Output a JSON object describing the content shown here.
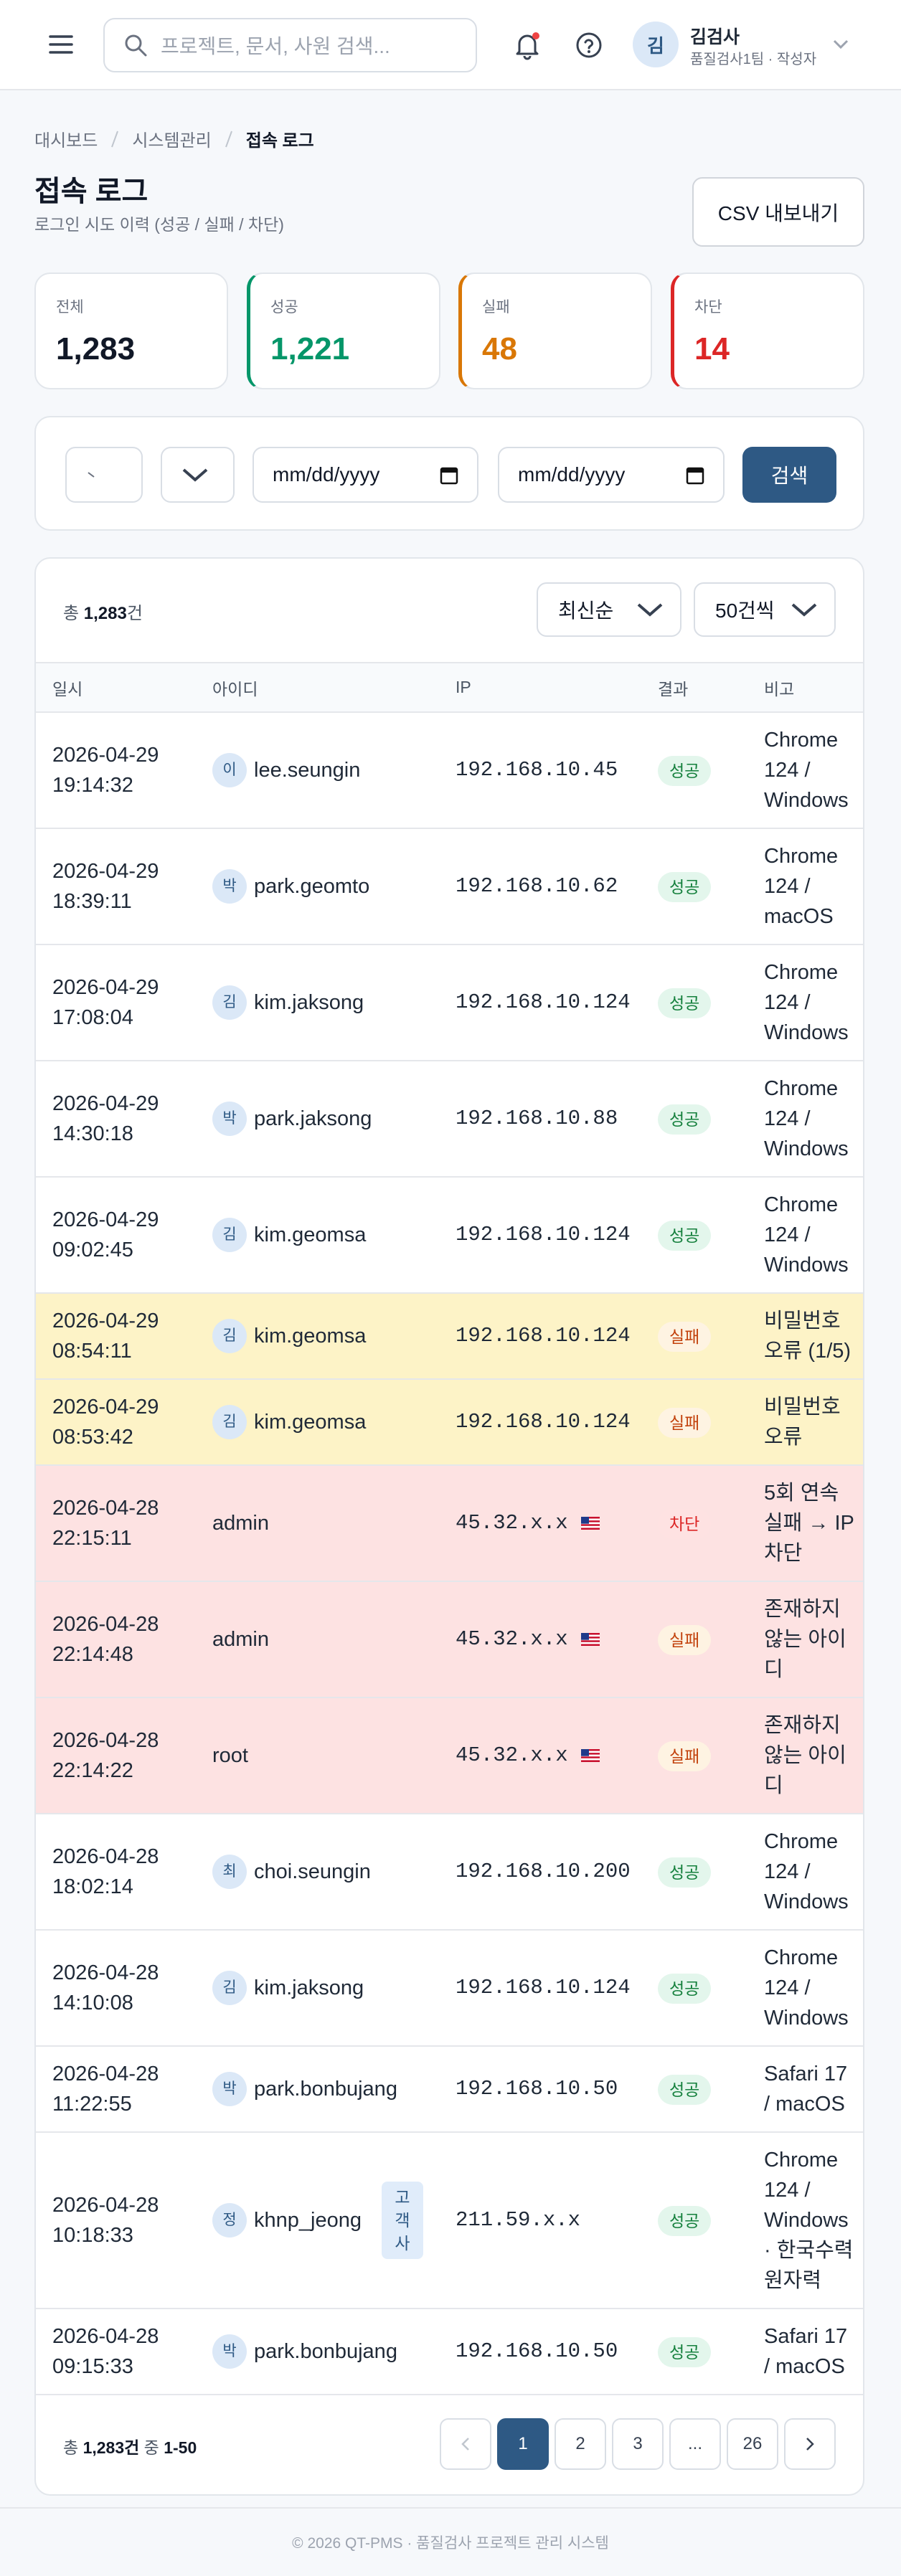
{
  "header": {
    "search_placeholder": "프로젝트, 문서, 사원 검색...",
    "user_initial": "김",
    "user_name": "김검사",
    "user_role": "품질검사1팀 · 작성자"
  },
  "breadcrumb": [
    "대시보드",
    "시스템관리",
    "접속 로그"
  ],
  "page": {
    "title": "접속 로그",
    "subtitle": "로그인 시도 이력 (성공 / 실패 / 차단)",
    "export_button": "CSV 내보내기"
  },
  "stats": [
    {
      "label": "전체",
      "value": "1,283",
      "tone": "neutral"
    },
    {
      "label": "성공",
      "value": "1,221",
      "tone": "success"
    },
    {
      "label": "실패",
      "value": "48",
      "tone": "fail"
    },
    {
      "label": "차단",
      "value": "14",
      "tone": "block"
    }
  ],
  "filters": {
    "date_placeholder": "mm/dd/yyyy",
    "search_button": "검색"
  },
  "table": {
    "total_prefix": "총",
    "total_count": "1,283",
    "total_suffix": "건",
    "sort_options": [
      "최신순",
      "50건씩"
    ],
    "columns": [
      "일시",
      "아이디",
      "IP",
      "결과",
      "비고"
    ],
    "rows": [
      {
        "time": "2026-04-29 19:14:32",
        "initial": "이",
        "user": "lee.seungin",
        "ip": "192.168.10.45",
        "result": "성공",
        "status": "success",
        "note": "Chrome 124 / Windows"
      },
      {
        "time": "2026-04-29 18:39:11",
        "initial": "박",
        "user": "park.geomto",
        "ip": "192.168.10.62",
        "result": "성공",
        "status": "success",
        "note": "Chrome 124 / macOS"
      },
      {
        "time": "2026-04-29 17:08:04",
        "initial": "김",
        "user": "kim.jaksong",
        "ip": "192.168.10.124",
        "result": "성공",
        "status": "success",
        "note": "Chrome 124 / Windows"
      },
      {
        "time": "2026-04-29 14:30:18",
        "initial": "박",
        "user": "park.jaksong",
        "ip": "192.168.10.88",
        "result": "성공",
        "status": "success",
        "note": "Chrome 124 / Windows"
      },
      {
        "time": "2026-04-29 09:02:45",
        "initial": "김",
        "user": "kim.geomsa",
        "ip": "192.168.10.124",
        "result": "성공",
        "status": "success",
        "note": "Chrome 124 / Windows"
      },
      {
        "time": "2026-04-29 08:54:11",
        "initial": "김",
        "user": "kim.geomsa",
        "ip": "192.168.10.124",
        "result": "실패",
        "status": "fail",
        "note": "비밀번호 오류 (1/5)",
        "highlight": "warning"
      },
      {
        "time": "2026-04-29 08:53:42",
        "initial": "김",
        "user": "kim.geomsa",
        "ip": "192.168.10.124",
        "result": "실패",
        "status": "fail",
        "note": "비밀번호 오류",
        "highlight": "warning"
      },
      {
        "time": "2026-04-28 22:15:11",
        "user": "admin",
        "ip": "45.32.x.x",
        "flag": "US",
        "result": "차단",
        "status": "block",
        "note": "5회 연속 실패 → IP 차단",
        "highlight": "danger"
      },
      {
        "time": "2026-04-28 22:14:48",
        "user": "admin",
        "ip": "45.32.x.x",
        "flag": "US",
        "result": "실패",
        "status": "fail",
        "note": "존재하지 않는 아이디",
        "highlight": "danger"
      },
      {
        "time": "2026-04-28 22:14:22",
        "user": "root",
        "ip": "45.32.x.x",
        "flag": "US",
        "result": "실패",
        "status": "fail",
        "note": "존재하지 않는 아이디",
        "highlight": "danger"
      },
      {
        "time": "2026-04-28 18:02:14",
        "initial": "최",
        "user": "choi.seungin",
        "ip": "192.168.10.200",
        "result": "성공",
        "status": "success",
        "note": "Chrome 124 / Windows"
      },
      {
        "time": "2026-04-28 14:10:08",
        "initial": "김",
        "user": "kim.jaksong",
        "ip": "192.168.10.124",
        "result": "성공",
        "status": "success",
        "note": "Chrome 124 / Windows"
      },
      {
        "time": "2026-04-28 11:22:55",
        "initial": "박",
        "user": "park.bonbujang",
        "ip": "192.168.10.50",
        "result": "성공",
        "status": "success",
        "note": "Safari 17 / macOS"
      },
      {
        "time": "2026-04-28 10:18:33",
        "initial": "정",
        "user": "khnp_jeong",
        "tag": "고객사",
        "ip": "211.59.x.x",
        "result": "성공",
        "status": "success",
        "note": "Chrome 124 / Windows · 한국수력원자력"
      },
      {
        "time": "2026-04-28 09:15:33",
        "initial": "박",
        "user": "park.bonbujang",
        "ip": "192.168.10.50",
        "result": "성공",
        "status": "success",
        "note": "Safari 17 / macOS"
      }
    ]
  },
  "pagination": {
    "summary_prefix": "총",
    "summary_count": "1,283건",
    "summary_mid": "중",
    "summary_range": "1-50",
    "pages": [
      "1",
      "2",
      "3",
      "...",
      "26"
    ],
    "current": "1"
  },
  "footer": "© 2026 QT-PMS · 품질검사 프로젝트 관리 시스템"
}
